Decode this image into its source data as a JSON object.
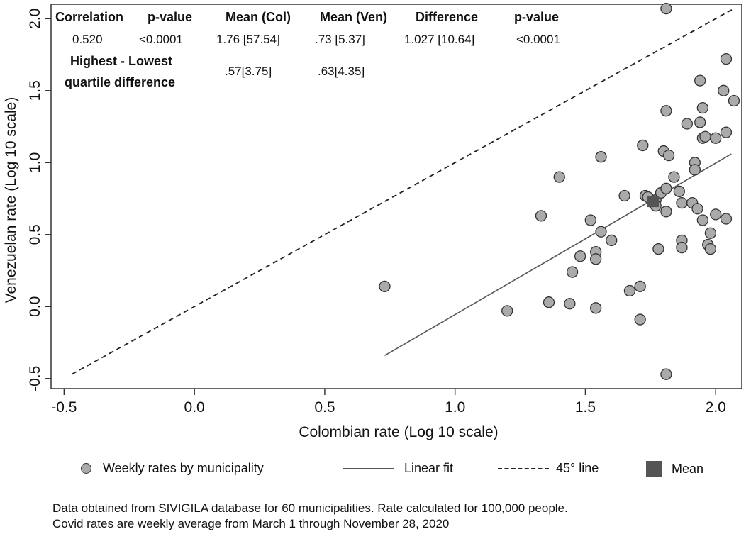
{
  "stats_table": {
    "headers": [
      "Correlation",
      "p-value",
      "Mean (Col)",
      "Mean (Ven)",
      "Difference",
      "p-value"
    ],
    "values": [
      "0.520",
      "<0.0001",
      "1.76 [57.54]",
      ".73 [5.37]",
      "1.027 [10.64]",
      "<0.0001"
    ],
    "quartile_label_line1": "Highest - Lowest",
    "quartile_label_line2": "quartile difference",
    "quartile_col": ".57[3.75]",
    "quartile_ven": ".63[4.35]"
  },
  "legend": {
    "points": "Weekly rates by municipality",
    "fit": "Linear fit",
    "diag": "45° line",
    "mean": "Mean"
  },
  "notes": [
    "Data obtained from SIVIGILA database for 60 municipalities. Rate calculated for 100,000 people.",
    "Covid rates are weekly average from March 1 through November 28, 2020"
  ],
  "chart_data": {
    "type": "scatter",
    "xlabel": "Colombian rate (Log 10 scale)",
    "ylabel": "Venezuelan rate (Log 10 scale)",
    "xlim": [
      -0.55,
      2.1
    ],
    "ylim": [
      -0.57,
      2.1
    ],
    "x_ticks": [
      -0.5,
      0.0,
      0.5,
      1.0,
      1.5,
      2.0
    ],
    "x_tick_labels": [
      "-0.5",
      "0.0",
      "0.5",
      "1.0",
      "1.5",
      "2.0"
    ],
    "y_ticks": [
      -0.5,
      0.0,
      0.5,
      1.0,
      1.5,
      2.0
    ],
    "y_tick_labels": [
      "-0.5",
      "0.0",
      "0.5",
      "1.0",
      "1.5",
      "2.0"
    ],
    "grid": false,
    "legend_position": "bottom",
    "points_color": "#aaaaaa",
    "series": [
      {
        "name": "Weekly rates by municipality",
        "points": [
          [
            0.73,
            0.14
          ],
          [
            1.2,
            -0.03
          ],
          [
            1.33,
            0.63
          ],
          [
            1.36,
            0.03
          ],
          [
            1.4,
            0.9
          ],
          [
            1.44,
            0.02
          ],
          [
            1.45,
            0.24
          ],
          [
            1.48,
            0.35
          ],
          [
            1.52,
            0.6
          ],
          [
            1.54,
            0.38
          ],
          [
            1.54,
            0.33
          ],
          [
            1.54,
            -0.01
          ],
          [
            1.56,
            1.04
          ],
          [
            1.56,
            0.52
          ],
          [
            1.6,
            0.46
          ],
          [
            1.65,
            0.77
          ],
          [
            1.67,
            0.11
          ],
          [
            1.71,
            0.14
          ],
          [
            1.71,
            -0.09
          ],
          [
            1.72,
            1.12
          ],
          [
            1.73,
            0.77
          ],
          [
            1.74,
            0.76
          ],
          [
            1.76,
            0.72
          ],
          [
            1.77,
            0.74
          ],
          [
            1.77,
            0.7
          ],
          [
            1.78,
            0.4
          ],
          [
            1.79,
            0.79
          ],
          [
            1.8,
            1.08
          ],
          [
            1.81,
            2.07
          ],
          [
            1.81,
            1.36
          ],
          [
            1.81,
            0.66
          ],
          [
            1.81,
            0.82
          ],
          [
            1.81,
            -0.47
          ],
          [
            1.82,
            1.05
          ],
          [
            1.84,
            0.9
          ],
          [
            1.86,
            0.8
          ],
          [
            1.87,
            0.72
          ],
          [
            1.87,
            0.46
          ],
          [
            1.87,
            0.41
          ],
          [
            1.89,
            1.27
          ],
          [
            1.91,
            0.72
          ],
          [
            1.92,
            1.0
          ],
          [
            1.92,
            0.95
          ],
          [
            1.93,
            0.68
          ],
          [
            1.94,
            1.57
          ],
          [
            1.94,
            1.28
          ],
          [
            1.95,
            1.38
          ],
          [
            1.95,
            1.17
          ],
          [
            1.95,
            0.6
          ],
          [
            1.96,
            1.18
          ],
          [
            1.97,
            0.43
          ],
          [
            1.98,
            0.4
          ],
          [
            1.98,
            0.51
          ],
          [
            2.0,
            1.17
          ],
          [
            2.0,
            0.64
          ],
          [
            2.03,
            1.5
          ],
          [
            2.04,
            1.72
          ],
          [
            2.04,
            1.21
          ],
          [
            2.04,
            0.61
          ],
          [
            2.07,
            1.43
          ]
        ]
      },
      {
        "name": "Linear fit",
        "line": [
          [
            0.73,
            -0.34
          ],
          [
            2.06,
            1.06
          ]
        ]
      },
      {
        "name": "45° line",
        "line": [
          [
            -0.47,
            -0.47
          ],
          [
            2.07,
            2.07
          ]
        ]
      },
      {
        "name": "Mean",
        "points": [
          [
            1.76,
            0.73
          ]
        ]
      }
    ]
  }
}
